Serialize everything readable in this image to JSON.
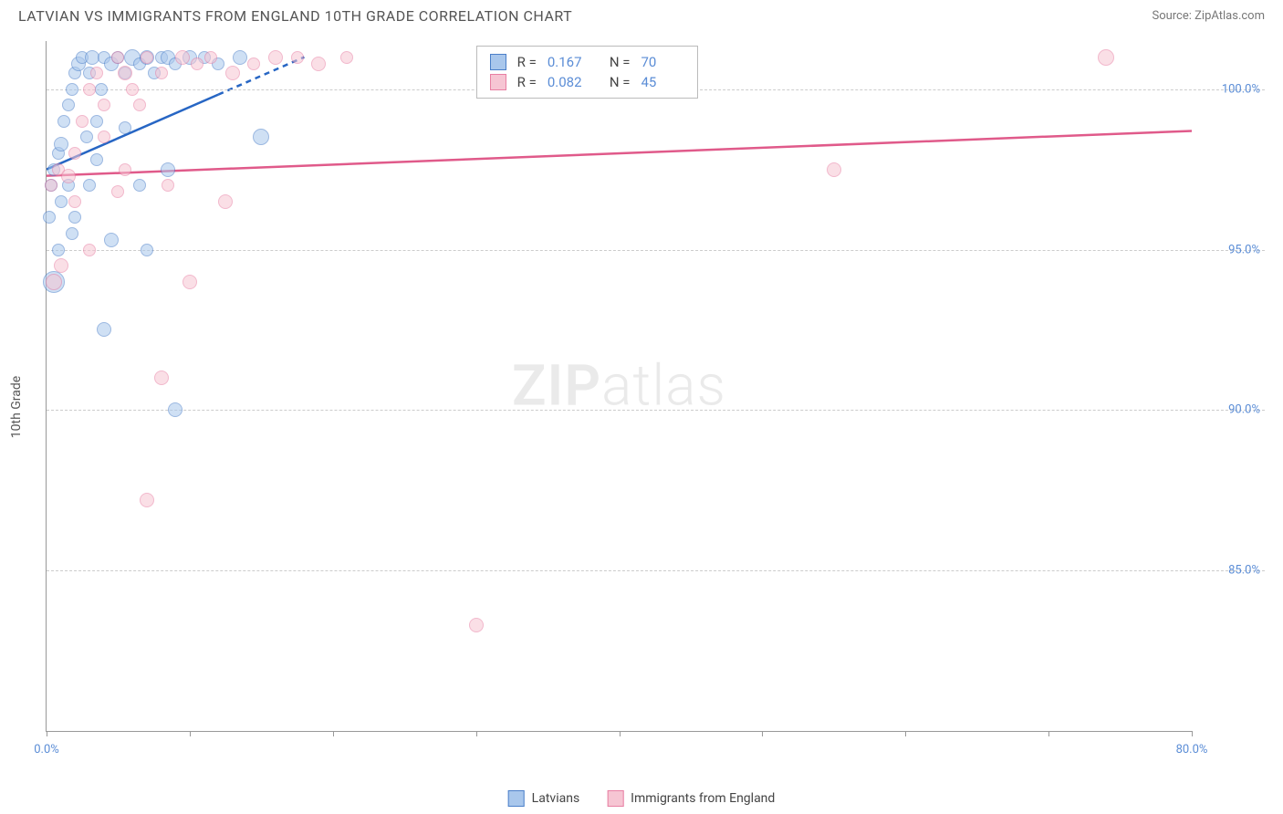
{
  "header": {
    "title": "LATVIAN VS IMMIGRANTS FROM ENGLAND 10TH GRADE CORRELATION CHART",
    "source_prefix": "Source: ",
    "source_link": "ZipAtlas.com"
  },
  "axes": {
    "y_label": "10th Grade",
    "x_min": 0,
    "x_max": 80,
    "y_min": 80,
    "y_max": 101.5,
    "y_ticks": [
      85,
      90,
      95,
      100
    ],
    "y_tick_labels": [
      "85.0%",
      "90.0%",
      "95.0%",
      "100.0%"
    ],
    "x_ticks": [
      0,
      10,
      20,
      30,
      40,
      50,
      60,
      70,
      80
    ],
    "x_tick_labels": [
      "0.0%",
      "",
      "",
      "",
      "",
      "",
      "",
      "",
      "80.0%"
    ]
  },
  "watermark": {
    "bold": "ZIP",
    "light": "atlas"
  },
  "series": [
    {
      "name": "Latvians",
      "name_key": "latvians",
      "color_fill": "#a9c7ec",
      "color_stroke": "#4b7fc9",
      "line_color": "#2766c4",
      "r_value": "0.167",
      "n_value": "70",
      "trend": {
        "x1": 0,
        "y1": 97.5,
        "x2": 18,
        "y2": 101,
        "dash_from_x": 12
      },
      "points": [
        {
          "x": 0.3,
          "y": 97.0,
          "r": 7
        },
        {
          "x": 0.5,
          "y": 97.5,
          "r": 7
        },
        {
          "x": 0.8,
          "y": 98.0,
          "r": 7
        },
        {
          "x": 1.0,
          "y": 98.3,
          "r": 8
        },
        {
          "x": 1.2,
          "y": 99.0,
          "r": 7
        },
        {
          "x": 1.5,
          "y": 99.5,
          "r": 7
        },
        {
          "x": 1.8,
          "y": 100.0,
          "r": 7
        },
        {
          "x": 2.0,
          "y": 100.5,
          "r": 7
        },
        {
          "x": 2.2,
          "y": 100.8,
          "r": 8
        },
        {
          "x": 2.5,
          "y": 101.0,
          "r": 7
        },
        {
          "x": 3.0,
          "y": 100.5,
          "r": 7
        },
        {
          "x": 3.2,
          "y": 101.0,
          "r": 8
        },
        {
          "x": 3.5,
          "y": 99.0,
          "r": 7
        },
        {
          "x": 3.8,
          "y": 100.0,
          "r": 7
        },
        {
          "x": 4.0,
          "y": 101.0,
          "r": 7
        },
        {
          "x": 4.5,
          "y": 100.8,
          "r": 8
        },
        {
          "x": 5.0,
          "y": 101.0,
          "r": 7
        },
        {
          "x": 5.5,
          "y": 100.5,
          "r": 7
        },
        {
          "x": 6.0,
          "y": 101.0,
          "r": 9
        },
        {
          "x": 6.5,
          "y": 100.8,
          "r": 7
        },
        {
          "x": 7.0,
          "y": 101.0,
          "r": 8
        },
        {
          "x": 7.5,
          "y": 100.5,
          "r": 7
        },
        {
          "x": 8.0,
          "y": 101.0,
          "r": 7
        },
        {
          "x": 8.5,
          "y": 101.0,
          "r": 8
        },
        {
          "x": 9.0,
          "y": 100.8,
          "r": 7
        },
        {
          "x": 10.0,
          "y": 101.0,
          "r": 8
        },
        {
          "x": 11.0,
          "y": 101.0,
          "r": 7
        },
        {
          "x": 12.0,
          "y": 100.8,
          "r": 7
        },
        {
          "x": 13.5,
          "y": 101.0,
          "r": 8
        },
        {
          "x": 15.0,
          "y": 98.5,
          "r": 9
        },
        {
          "x": 1.0,
          "y": 96.5,
          "r": 7
        },
        {
          "x": 2.0,
          "y": 96.0,
          "r": 7
        },
        {
          "x": 3.0,
          "y": 97.0,
          "r": 7
        },
        {
          "x": 0.5,
          "y": 94.0,
          "r": 12
        },
        {
          "x": 4.5,
          "y": 95.3,
          "r": 8
        },
        {
          "x": 7.0,
          "y": 95.0,
          "r": 7
        },
        {
          "x": 6.5,
          "y": 97.0,
          "r": 7
        },
        {
          "x": 4.0,
          "y": 92.5,
          "r": 8
        },
        {
          "x": 8.5,
          "y": 97.5,
          "r": 8
        },
        {
          "x": 9.0,
          "y": 90.0,
          "r": 8
        },
        {
          "x": 1.5,
          "y": 97.0,
          "r": 7
        },
        {
          "x": 0.8,
          "y": 95.0,
          "r": 7
        },
        {
          "x": 2.8,
          "y": 98.5,
          "r": 7
        },
        {
          "x": 3.5,
          "y": 97.8,
          "r": 7
        },
        {
          "x": 5.5,
          "y": 98.8,
          "r": 7
        },
        {
          "x": 0.2,
          "y": 96.0,
          "r": 7
        },
        {
          "x": 1.8,
          "y": 95.5,
          "r": 7
        }
      ]
    },
    {
      "name": "Immigrants from England",
      "name_key": "england",
      "color_fill": "#f6c5d3",
      "color_stroke": "#e87fa3",
      "line_color": "#e05a8a",
      "r_value": "0.082",
      "n_value": "45",
      "trend": {
        "x1": 0,
        "y1": 97.3,
        "x2": 80,
        "y2": 98.7,
        "dash_from_x": 999
      },
      "points": [
        {
          "x": 0.3,
          "y": 97.0,
          "r": 7
        },
        {
          "x": 0.8,
          "y": 97.5,
          "r": 7
        },
        {
          "x": 1.5,
          "y": 97.3,
          "r": 8
        },
        {
          "x": 2.0,
          "y": 98.0,
          "r": 7
        },
        {
          "x": 2.5,
          "y": 99.0,
          "r": 7
        },
        {
          "x": 3.0,
          "y": 100.0,
          "r": 7
        },
        {
          "x": 3.5,
          "y": 100.5,
          "r": 7
        },
        {
          "x": 4.0,
          "y": 99.5,
          "r": 7
        },
        {
          "x": 5.0,
          "y": 101.0,
          "r": 7
        },
        {
          "x": 5.5,
          "y": 100.5,
          "r": 8
        },
        {
          "x": 6.0,
          "y": 100.0,
          "r": 7
        },
        {
          "x": 7.0,
          "y": 101.0,
          "r": 7
        },
        {
          "x": 8.0,
          "y": 100.5,
          "r": 7
        },
        {
          "x": 9.5,
          "y": 101.0,
          "r": 8
        },
        {
          "x": 10.5,
          "y": 100.8,
          "r": 7
        },
        {
          "x": 11.5,
          "y": 101.0,
          "r": 7
        },
        {
          "x": 13.0,
          "y": 100.5,
          "r": 8
        },
        {
          "x": 14.5,
          "y": 100.8,
          "r": 7
        },
        {
          "x": 16.0,
          "y": 101.0,
          "r": 8
        },
        {
          "x": 17.5,
          "y": 101.0,
          "r": 7
        },
        {
          "x": 19.0,
          "y": 100.8,
          "r": 8
        },
        {
          "x": 21.0,
          "y": 101.0,
          "r": 7
        },
        {
          "x": 1.0,
          "y": 94.5,
          "r": 8
        },
        {
          "x": 3.0,
          "y": 95.0,
          "r": 7
        },
        {
          "x": 5.0,
          "y": 96.8,
          "r": 7
        },
        {
          "x": 5.5,
          "y": 97.5,
          "r": 7
        },
        {
          "x": 8.5,
          "y": 97.0,
          "r": 7
        },
        {
          "x": 10.0,
          "y": 94.0,
          "r": 8
        },
        {
          "x": 12.5,
          "y": 96.5,
          "r": 8
        },
        {
          "x": 8.0,
          "y": 91.0,
          "r": 8
        },
        {
          "x": 7.0,
          "y": 87.2,
          "r": 8
        },
        {
          "x": 30.0,
          "y": 83.3,
          "r": 8
        },
        {
          "x": 31.0,
          "y": 101.0,
          "r": 8
        },
        {
          "x": 40.0,
          "y": 101.0,
          "r": 7
        },
        {
          "x": 55.0,
          "y": 97.5,
          "r": 8
        },
        {
          "x": 74.0,
          "y": 101.0,
          "r": 9
        },
        {
          "x": 0.5,
          "y": 94.0,
          "r": 9
        },
        {
          "x": 2.0,
          "y": 96.5,
          "r": 7
        },
        {
          "x": 4.0,
          "y": 98.5,
          "r": 7
        },
        {
          "x": 6.5,
          "y": 99.5,
          "r": 7
        }
      ]
    }
  ],
  "legend_labels": {
    "r": "R  =",
    "n": "N  ="
  },
  "styling": {
    "grid_color": "#d0d0d0",
    "axis_color": "#999999",
    "tick_label_color": "#5b8dd6",
    "title_fontsize": 16,
    "tick_fontsize": 13,
    "point_opacity": 0.55
  }
}
